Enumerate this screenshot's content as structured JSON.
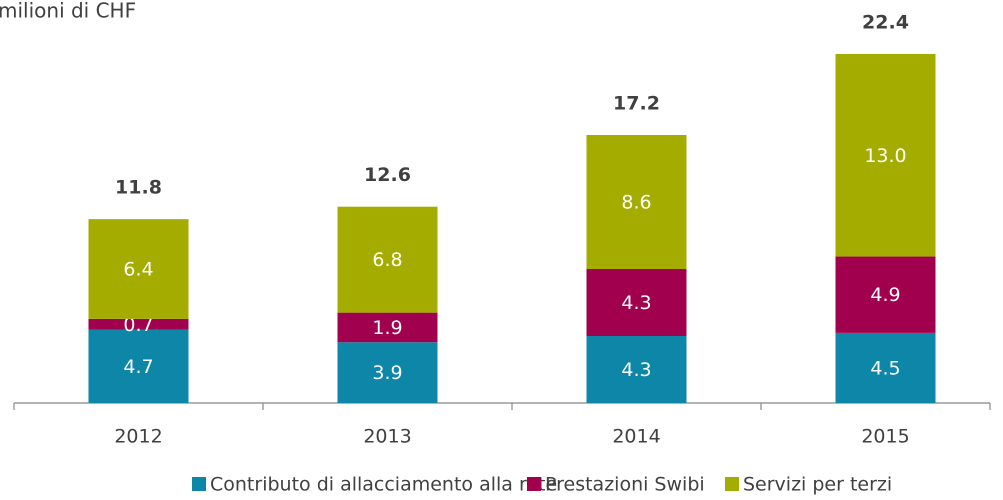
{
  "chart_data": {
    "type": "stacked-bar",
    "title": "milioni di CHF",
    "categories": [
      "2012",
      "2013",
      "2014",
      "2015"
    ],
    "series": [
      {
        "name": "Contributo di allacciamento alla rete",
        "color": "#0e86a8",
        "values": [
          4.7,
          3.9,
          4.3,
          4.5
        ]
      },
      {
        "name": "Prestazioni Swibi",
        "color": "#a0004e",
        "values": [
          0.7,
          1.9,
          4.3,
          4.9
        ]
      },
      {
        "name": "Servizi per terzi",
        "color": "#a5ac00",
        "values": [
          6.4,
          6.8,
          8.6,
          13.0
        ],
        "value_labels": [
          "6.4",
          "6.8",
          "8.6",
          "13.0"
        ]
      }
    ],
    "totals": [
      11.8,
      12.6,
      17.2,
      22.4
    ]
  }
}
